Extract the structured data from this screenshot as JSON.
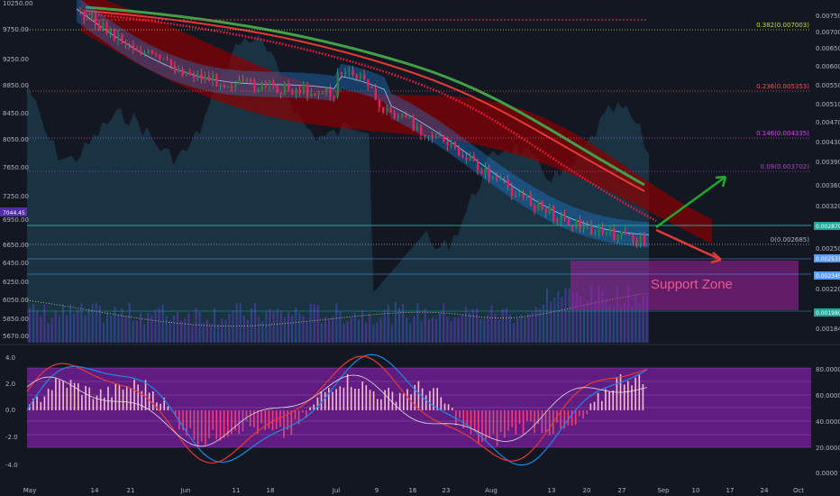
{
  "chart_data": {
    "type": "candlestick",
    "instrument_type": "price chart with indicators",
    "x_ticks": [
      "May",
      "14",
      "21",
      "Jun",
      "11",
      "18",
      "Jul",
      "9",
      "16",
      "23",
      "Aug",
      "13",
      "20",
      "27",
      "Sep",
      "10",
      "17",
      "24",
      "Oct"
    ],
    "left_axis_ticks": [
      "10250.00",
      "9750.00",
      "9250.00",
      "8850.00",
      "8450.00",
      "8050.00",
      "7650.00",
      "7250.00",
      "6950.00",
      "6650.00",
      "6450.00",
      "6250.00",
      "6050.00",
      "5850.00",
      "5670.00"
    ],
    "right_axis_ticks": [
      "0.007500",
      "0.007000",
      "0.006500",
      "0.006000",
      "0.005500",
      "0.005100",
      "0.004700",
      "0.004300",
      "0.003900",
      "0.003600",
      "0.003200",
      "0.002900",
      "0.002500",
      "0.002200",
      "0.001980",
      "0.001840"
    ],
    "current_price_label": "7044.45",
    "right_badges": [
      {
        "text": "0.002879",
        "color": "#26a69a"
      },
      {
        "text": "0.002531",
        "color": "#5b9cf6"
      },
      {
        "text": "0.002345",
        "color": "#5b9cf6"
      },
      {
        "text": "0.001980",
        "color": "#26a69a"
      }
    ],
    "fib_levels": [
      {
        "label": "0.382(0.007003)",
        "color": "#cddc39",
        "y": 0.007003
      },
      {
        "label": "0.236(0.005353)",
        "color": "#ef5350",
        "y": 0.005353
      },
      {
        "label": "0.146(0.004335)",
        "color": "#e040fb",
        "y": 0.004335
      },
      {
        "label": "0.09(0.003702)",
        "color": "#ab47bc",
        "y": 0.003702
      },
      {
        "label": "0(0.002685)",
        "color": "#b2b5be",
        "y": 0.002685
      }
    ],
    "support_zone": {
      "label": "Support Zone",
      "color": "#9c27b0"
    },
    "oscillator": {
      "left_ticks": [
        "4.0",
        "2.0",
        "0.0",
        "-2.0",
        "-4.0"
      ],
      "right_ticks": [
        "80.0000",
        "60.0000",
        "40.0000",
        "20.0000",
        "0.0000"
      ],
      "band_color": "#7b1fa2"
    },
    "grid": false,
    "arrows": [
      {
        "direction": "up",
        "color": "#1faa2e"
      },
      {
        "direction": "down",
        "color": "#e53935"
      }
    ]
  }
}
